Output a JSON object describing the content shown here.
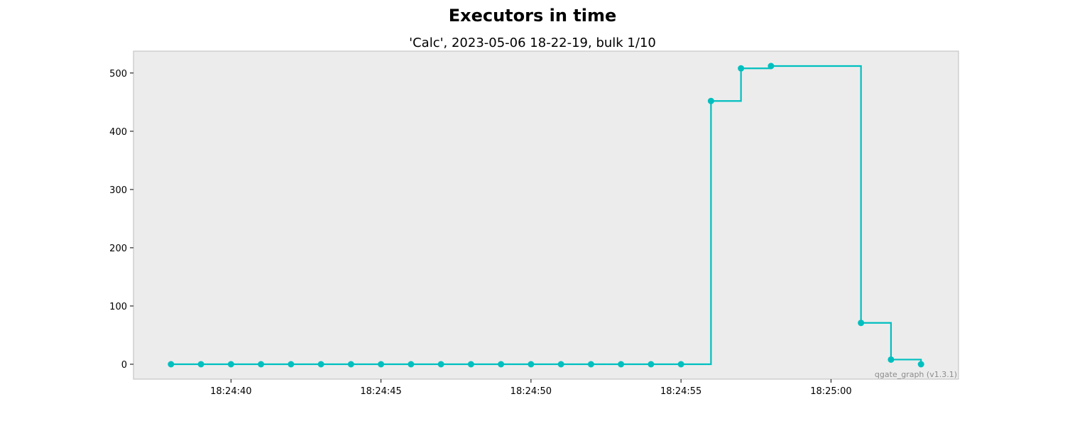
{
  "chart_data": {
    "type": "line",
    "step": "post",
    "title": "Executors in time",
    "subtitle": "'Calc', 2023-05-06 18-22-19, bulk 1/10",
    "xlabel": "",
    "ylabel": "",
    "watermark": "qgate_graph (v1.3.1)",
    "x": [
      "18:24:38",
      "18:24:39",
      "18:24:40",
      "18:24:41",
      "18:24:42",
      "18:24:43",
      "18:24:44",
      "18:24:45",
      "18:24:46",
      "18:24:47",
      "18:24:48",
      "18:24:49",
      "18:24:50",
      "18:24:51",
      "18:24:52",
      "18:24:53",
      "18:24:54",
      "18:24:55",
      "18:24:56",
      "18:24:57",
      "18:24:58",
      "18:25:01",
      "18:25:02",
      "18:25:03"
    ],
    "series": [
      {
        "color": "#00bfbf",
        "values": [
          0,
          0,
          0,
          0,
          0,
          0,
          0,
          0,
          0,
          0,
          0,
          0,
          0,
          0,
          0,
          0,
          0,
          0,
          452,
          508,
          512,
          71,
          8,
          0
        ]
      }
    ],
    "xlim": [
      "18:24:36.75",
      "18:25:04.25"
    ],
    "ylim": [
      -25.6,
      537.6
    ],
    "xticks": [
      "18:24:40",
      "18:24:45",
      "18:24:50",
      "18:24:55",
      "18:25:00"
    ],
    "yticks": [
      0,
      100,
      200,
      300,
      400,
      500
    ],
    "grid": false,
    "background": "#ececec"
  }
}
